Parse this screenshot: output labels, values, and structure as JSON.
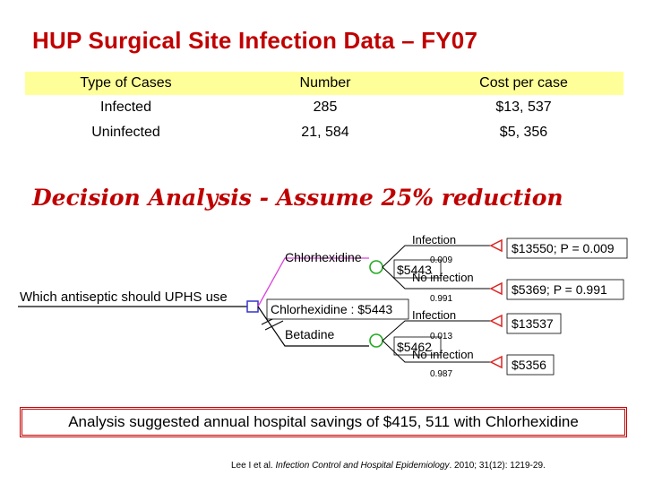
{
  "title": "HUP Surgical Site Infection Data – FY07",
  "table": {
    "headers": [
      "Type of Cases",
      "Number",
      "Cost per case"
    ],
    "rows": [
      [
        "Infected",
        "285",
        "$13, 537"
      ],
      [
        "Uninfected",
        "21, 584",
        "$5, 356"
      ]
    ],
    "header_color": "#ffff99"
  },
  "decision_heading": "Decision Analysis - Assume 25% reduction",
  "tree": {
    "root_label": "Which antiseptic should UPHS use",
    "optimal_label": "Chlorhexidine : $5443",
    "branches": [
      {
        "name": "Chlorhexidine",
        "expected_value": "$5443",
        "outcomes": [
          {
            "label": "Infection",
            "probability": "0.009",
            "payoff": "$13550; P = 0.009"
          },
          {
            "label": "No infection",
            "probability": "0.991",
            "payoff": "$5369; P = 0.991"
          }
        ]
      },
      {
        "name": "Betadine",
        "expected_value": "$5462",
        "outcomes": [
          {
            "label": "Infection",
            "probability": "0.013",
            "payoff": "$13537"
          },
          {
            "label": "No infection",
            "probability": "0.987",
            "payoff": "$5356"
          }
        ]
      }
    ],
    "colors": {
      "decision_node": "#3333cc",
      "chance_node": "#22aa22",
      "terminal_node": "#dd2222",
      "optimal_path": "#dd44dd"
    }
  },
  "summary": "Analysis suggested annual hospital savings of $415, 511 with Chlorhexidine",
  "citation": {
    "authors": "Lee I et al. ",
    "journal": "Infection Control and Hospital Epidemiology",
    "details": ". 2010; 31(12): 1219-29."
  },
  "accent_color": "#c00000"
}
